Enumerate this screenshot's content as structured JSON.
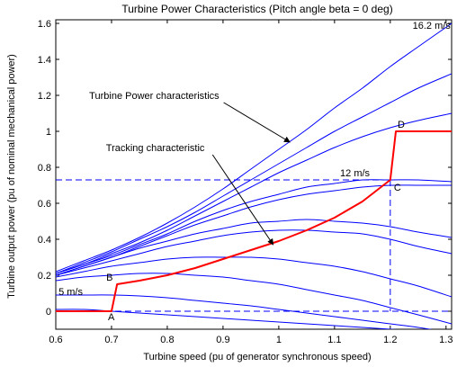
{
  "chart_data": {
    "type": "line",
    "title": "Turbine Power Characteristics (Pitch angle beta = 0 deg)",
    "xlabel": "Turbine speed (pu of generator synchronous speed)",
    "ylabel": "Turbine output power (pu of nominal mechanical power)",
    "xlim": [
      0.6,
      1.31
    ],
    "ylim": [
      -0.1,
      1.62
    ],
    "xticks": [
      0.6,
      0.7,
      0.8,
      0.9,
      1,
      1.1,
      1.2,
      1.3
    ],
    "yticks": [
      0,
      0.2,
      0.4,
      0.6,
      0.8,
      1,
      1.2,
      1.4,
      1.6
    ],
    "grid": false,
    "colors": {
      "power_curves": "#0000ff",
      "tracking": "#ff0000",
      "dashed": "#0000ff"
    },
    "power_curves": [
      {
        "x": [
          0.6,
          0.65,
          0.7,
          0.75,
          0.8,
          0.85,
          0.9,
          0.95,
          1.0,
          1.05,
          1.1,
          1.15,
          1.2,
          1.25,
          1.31
        ],
        "y": [
          0.01,
          0.01,
          0.0,
          -0.01,
          -0.02,
          -0.03,
          -0.04,
          -0.05,
          -0.06,
          -0.07,
          -0.08,
          -0.09,
          -0.1,
          -0.11,
          -0.12
        ]
      },
      {
        "x": [
          0.6,
          0.65,
          0.7,
          0.75,
          0.8,
          0.85,
          0.9,
          0.95,
          1.0,
          1.05,
          1.1,
          1.15,
          1.2,
          1.25,
          1.31
        ],
        "y": [
          0.09,
          0.09,
          0.09,
          0.085,
          0.075,
          0.06,
          0.045,
          0.03,
          0.01,
          -0.01,
          -0.03,
          -0.05,
          -0.07,
          -0.09,
          -0.12
        ]
      },
      {
        "x": [
          0.6,
          0.65,
          0.7,
          0.75,
          0.8,
          0.85,
          0.9,
          0.95,
          1.0,
          1.05,
          1.1,
          1.15,
          1.2,
          1.25,
          1.31
        ],
        "y": [
          0.17,
          0.19,
          0.2,
          0.21,
          0.21,
          0.2,
          0.19,
          0.17,
          0.15,
          0.12,
          0.09,
          0.06,
          0.02,
          -0.02,
          -0.07
        ]
      },
      {
        "x": [
          0.6,
          0.65,
          0.7,
          0.75,
          0.8,
          0.85,
          0.9,
          0.95,
          1.0,
          1.05,
          1.1,
          1.15,
          1.2,
          1.25,
          1.31
        ],
        "y": [
          0.19,
          0.22,
          0.25,
          0.27,
          0.29,
          0.3,
          0.3,
          0.3,
          0.29,
          0.27,
          0.25,
          0.22,
          0.18,
          0.14,
          0.08
        ]
      },
      {
        "x": [
          0.6,
          0.65,
          0.7,
          0.75,
          0.8,
          0.85,
          0.9,
          0.95,
          1.0,
          1.05,
          1.1,
          1.15,
          1.2,
          1.25,
          1.31
        ],
        "y": [
          0.2,
          0.24,
          0.28,
          0.32,
          0.36,
          0.39,
          0.42,
          0.44,
          0.45,
          0.45,
          0.44,
          0.43,
          0.4,
          0.36,
          0.32
        ]
      },
      {
        "x": [
          0.6,
          0.65,
          0.7,
          0.75,
          0.8,
          0.85,
          0.9,
          0.95,
          1.0,
          1.05,
          1.1,
          1.15,
          1.2,
          1.25,
          1.31
        ],
        "y": [
          0.2,
          0.25,
          0.3,
          0.35,
          0.39,
          0.43,
          0.46,
          0.49,
          0.5,
          0.51,
          0.5,
          0.49,
          0.47,
          0.44,
          0.41
        ]
      },
      {
        "x": [
          0.6,
          0.65,
          0.7,
          0.75,
          0.8,
          0.85,
          0.9,
          0.95,
          1.0,
          1.05,
          1.1,
          1.15,
          1.2,
          1.25,
          1.31
        ],
        "y": [
          0.2,
          0.25,
          0.3,
          0.36,
          0.42,
          0.48,
          0.53,
          0.58,
          0.62,
          0.65,
          0.67,
          0.69,
          0.7,
          0.7,
          0.7
        ]
      },
      {
        "x": [
          0.6,
          0.65,
          0.7,
          0.75,
          0.8,
          0.85,
          0.9,
          0.95,
          1.0,
          1.05,
          1.1,
          1.15,
          1.2,
          1.25,
          1.31
        ],
        "y": [
          0.21,
          0.26,
          0.31,
          0.37,
          0.43,
          0.5,
          0.56,
          0.61,
          0.65,
          0.69,
          0.71,
          0.73,
          0.73,
          0.73,
          0.72
        ]
      },
      {
        "x": [
          0.6,
          0.65,
          0.7,
          0.75,
          0.8,
          0.85,
          0.9,
          0.95,
          1.0,
          1.05,
          1.1,
          1.15,
          1.2,
          1.25,
          1.31
        ],
        "y": [
          0.21,
          0.26,
          0.32,
          0.38,
          0.45,
          0.53,
          0.61,
          0.69,
          0.77,
          0.84,
          0.91,
          0.97,
          1.02,
          1.06,
          1.1
        ]
      },
      {
        "x": [
          0.6,
          0.65,
          0.7,
          0.75,
          0.8,
          0.85,
          0.9,
          0.95,
          1.0,
          1.05,
          1.1,
          1.15,
          1.2,
          1.25,
          1.31
        ],
        "y": [
          0.21,
          0.27,
          0.33,
          0.4,
          0.47,
          0.55,
          0.64,
          0.73,
          0.82,
          0.91,
          1.0,
          1.08,
          1.16,
          1.24,
          1.32
        ]
      },
      {
        "x": [
          0.6,
          0.65,
          0.7,
          0.75,
          0.8,
          0.85,
          0.9,
          0.95,
          1.0,
          1.05,
          1.1,
          1.15,
          1.2,
          1.25,
          1.31
        ],
        "y": [
          0.22,
          0.28,
          0.34,
          0.41,
          0.49,
          0.58,
          0.68,
          0.79,
          0.9,
          1.01,
          1.13,
          1.24,
          1.36,
          1.47,
          1.6
        ]
      }
    ],
    "tracking_characteristic": {
      "x": [
        0.6,
        0.7,
        0.71,
        0.75,
        0.8,
        0.85,
        0.9,
        0.95,
        1.0,
        1.05,
        1.1,
        1.15,
        1.2,
        1.21,
        1.31
      ],
      "y": [
        0.0,
        0.0,
        0.15,
        0.17,
        0.2,
        0.24,
        0.29,
        0.34,
        0.39,
        0.45,
        0.52,
        0.61,
        0.73,
        1.0,
        1.0
      ]
    },
    "dashed_lines": [
      {
        "x": [
          0.6,
          1.2
        ],
        "y": [
          0.73,
          0.73
        ]
      },
      {
        "x": [
          1.2,
          1.2
        ],
        "y": [
          0.73,
          0.0
        ]
      },
      {
        "x": [
          0.6,
          1.31
        ],
        "y": [
          0.0,
          0.0
        ]
      }
    ],
    "point_labels": [
      {
        "text": "A",
        "x": 0.7,
        "y": 0.0
      },
      {
        "text": "B",
        "x": 0.71,
        "y": 0.15
      },
      {
        "text": "C",
        "x": 1.2,
        "y": 0.73
      },
      {
        "text": "D",
        "x": 1.21,
        "y": 1.0
      }
    ],
    "annotations": [
      {
        "text": "16.2 m/s",
        "x": 1.24,
        "y": 1.57
      },
      {
        "text": "12 m/s",
        "x": 1.11,
        "y": 0.75
      },
      {
        "text": "5 m/s",
        "x": 0.605,
        "y": 0.09
      },
      {
        "text": "Turbine Power characteristics",
        "x": 0.66,
        "y": 1.18,
        "arrow_to_x": 1.02,
        "arrow_to_y": 0.94
      },
      {
        "text": "Tracking characteristic",
        "x": 0.69,
        "y": 0.89,
        "arrow_to_x": 0.99,
        "arrow_to_y": 0.37
      }
    ]
  }
}
